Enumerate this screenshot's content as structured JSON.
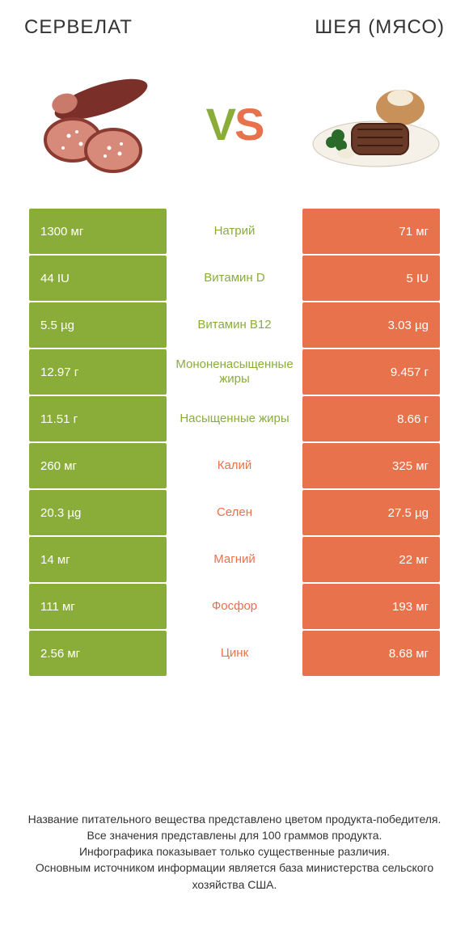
{
  "colors": {
    "green": "#8aad3a",
    "orange": "#e8724b",
    "text": "#333333",
    "white": "#ffffff"
  },
  "left_title": "СЕРВЕЛАТ",
  "right_title": "ШЕЯ (МЯСО)",
  "vs_v": "V",
  "vs_s": "S",
  "rows": [
    {
      "left": "1300 мг",
      "mid": "Натрий",
      "right": "71 мг",
      "winner": "left"
    },
    {
      "left": "44 IU",
      "mid": "Витамин D",
      "right": "5 IU",
      "winner": "left"
    },
    {
      "left": "5.5 µg",
      "mid": "Витамин B12",
      "right": "3.03 µg",
      "winner": "left"
    },
    {
      "left": "12.97 г",
      "mid": "Мононенасыщенные жиры",
      "right": "9.457 г",
      "winner": "left"
    },
    {
      "left": "11.51 г",
      "mid": "Насыщенные жиры",
      "right": "8.66 г",
      "winner": "left"
    },
    {
      "left": "260 мг",
      "mid": "Калий",
      "right": "325 мг",
      "winner": "right"
    },
    {
      "left": "20.3 µg",
      "mid": "Селен",
      "right": "27.5 µg",
      "winner": "right"
    },
    {
      "left": "14 мг",
      "mid": "Магний",
      "right": "22 мг",
      "winner": "right"
    },
    {
      "left": "111 мг",
      "mid": "Фосфор",
      "right": "193 мг",
      "winner": "right"
    },
    {
      "left": "2.56 мг",
      "mid": "Цинк",
      "right": "8.68 мг",
      "winner": "right"
    }
  ],
  "footer": "Название питательного вещества представлено цветом продукта-победителя.\nВсе значения представлены для 100 граммов продукта.\nИнфографика показывает только существенные различия.\nОсновным источником информации является база министерства сельского хозяйства США."
}
